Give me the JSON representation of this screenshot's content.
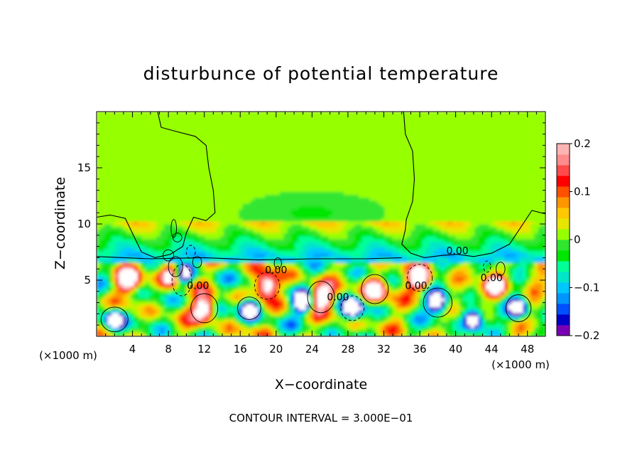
{
  "chart_data": {
    "type": "heatmap",
    "title": "disturbunce of potential temperature",
    "xlabel": "X−coordinate",
    "ylabel": "Z−coordinate",
    "x_unit": "(×1000 m)",
    "x_unit_right": "(×1000 m)",
    "footer": "CONTOUR INTERVAL = 3.000E−01",
    "xlim": [
      0,
      50
    ],
    "ylim": [
      0,
      20
    ],
    "x_ticks": [
      4,
      8,
      12,
      16,
      20,
      24,
      28,
      32,
      36,
      40,
      44,
      48
    ],
    "x_tick_labels": [
      "4",
      "8",
      "12",
      "16",
      "20",
      "24",
      "28",
      "32",
      "36",
      "40",
      "44",
      "48"
    ],
    "y_ticks": [
      5,
      10,
      15
    ],
    "y_tick_labels": [
      "5",
      "10",
      "15"
    ],
    "colorbar": {
      "min": -0.2,
      "max": 0.2,
      "ticks": [
        0.2,
        0.1,
        0,
        -0.1,
        -0.2
      ],
      "tick_labels": [
        "0.2",
        "0.1",
        "0",
        "−0.1",
        "−0.2"
      ],
      "colors_bottom_to_top": [
        "#7b00b4",
        "#0000c8",
        "#0050ff",
        "#0096ff",
        "#00c8ff",
        "#00e6c8",
        "#00ff96",
        "#00e600",
        "#30e630",
        "#96ff00",
        "#e6e600",
        "#ffc800",
        "#ff9600",
        "#ff5000",
        "#ff0000",
        "#ff4b4b",
        "#ff8c8c",
        "#ffb4b4"
      ]
    },
    "contour_labels": [
      {
        "text": "0.00",
        "x": 40.2,
        "z": 7.3
      },
      {
        "text": "0.00",
        "x": 11.3,
        "z": 4.2
      },
      {
        "text": "0.00",
        "x": 20.0,
        "z": 5.6
      },
      {
        "text": "0.00",
        "x": 26.9,
        "z": 3.2
      },
      {
        "text": "0.00",
        "x": 35.6,
        "z": 4.2
      },
      {
        "text": "0.00",
        "x": 44.0,
        "z": 4.9
      }
    ],
    "regions": {
      "upper_field_value": 0.02,
      "inversion_height_z": 7.2,
      "positive_cores": [
        [
          12.0,
          2.5
        ],
        [
          19.0,
          4.5
        ],
        [
          25.0,
          3.5
        ],
        [
          31.0,
          4.2
        ],
        [
          36.0,
          5.2
        ],
        [
          8.5,
          5.5
        ],
        [
          3.5,
          5.0
        ],
        [
          44.5,
          4.5
        ]
      ],
      "negative_cores": [
        [
          2.0,
          1.5
        ],
        [
          9.5,
          5.5
        ],
        [
          17.0,
          2.5
        ],
        [
          23.0,
          3.0
        ],
        [
          28.5,
          2.5
        ],
        [
          38.0,
          3.0
        ],
        [
          42.0,
          1.5
        ],
        [
          47.0,
          2.5
        ]
      ]
    }
  }
}
